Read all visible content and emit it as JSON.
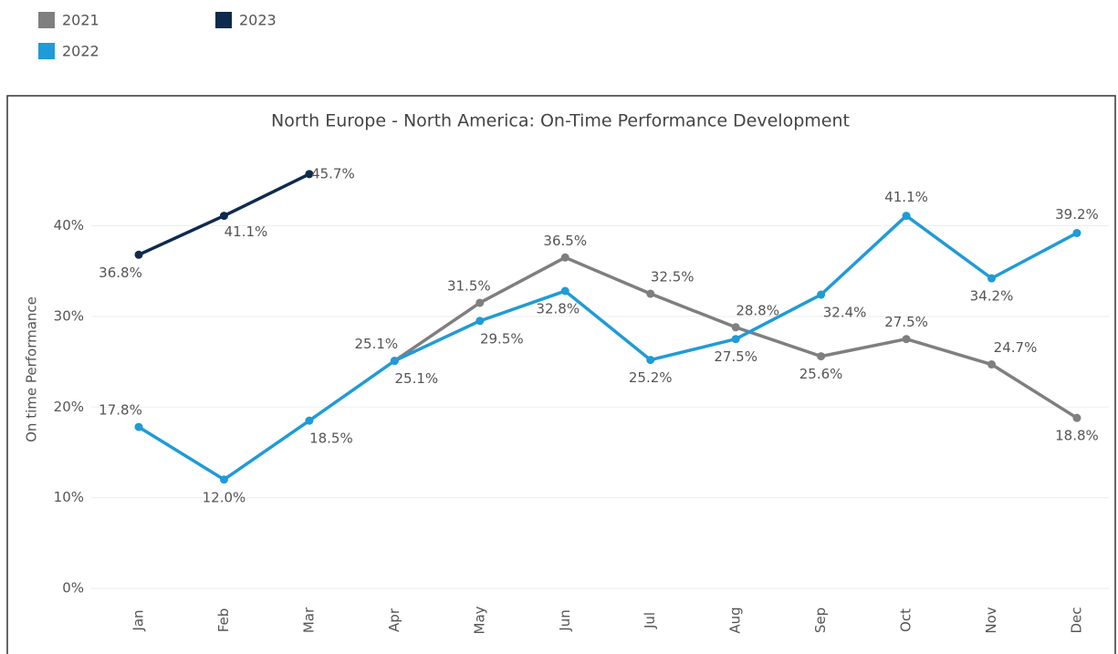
{
  "chart_data": {
    "type": "line",
    "title": "North Europe - North America: On-Time Performance Development",
    "y_label": "On time Performance",
    "categories": [
      "Jan",
      "Feb",
      "Mar",
      "Apr",
      "May",
      "Jun",
      "Jul",
      "Aug",
      "Sep",
      "Oct",
      "Nov",
      "Dec"
    ],
    "ylim": [
      0,
      48
    ],
    "yticks": [
      {
        "value": 0,
        "label": "0%"
      },
      {
        "value": 10,
        "label": "10%"
      },
      {
        "value": 20,
        "label": "20%"
      },
      {
        "value": 30,
        "label": "30%"
      },
      {
        "value": 40,
        "label": "40%"
      }
    ],
    "grid": true,
    "legend": "top-left",
    "series": [
      {
        "name": "2021",
        "color": "#7f7f7f",
        "values": [
          null,
          null,
          null,
          25.1,
          31.5,
          36.5,
          32.5,
          28.8,
          25.6,
          27.5,
          24.7,
          18.8
        ],
        "value_labels": [
          null,
          null,
          null,
          "25.1%",
          "31.5%",
          "36.5%",
          "32.5%",
          "28.8%",
          "25.6%",
          "27.5%",
          "24.7%",
          "18.8%"
        ]
      },
      {
        "name": "2022",
        "color": "#1f9bd7",
        "values": [
          17.8,
          12.0,
          18.5,
          25.1,
          29.5,
          32.8,
          25.2,
          27.5,
          32.4,
          41.1,
          34.2,
          39.2
        ],
        "value_labels": [
          "17.8%",
          "12.0%",
          "18.5%",
          "25.1%",
          "29.5%",
          "32.8%",
          "25.2%",
          "27.5%",
          "32.4%",
          "41.1%",
          "34.2%",
          "39.2%"
        ]
      },
      {
        "name": "2023",
        "color": "#0d2b4e",
        "values": [
          36.8,
          41.1,
          45.7,
          null,
          null,
          null,
          null,
          null,
          null,
          null,
          null,
          null
        ],
        "value_labels": [
          "36.8%",
          "41.1%",
          "45.7%",
          null,
          null,
          null,
          null,
          null,
          null,
          null,
          null,
          null
        ]
      }
    ]
  }
}
